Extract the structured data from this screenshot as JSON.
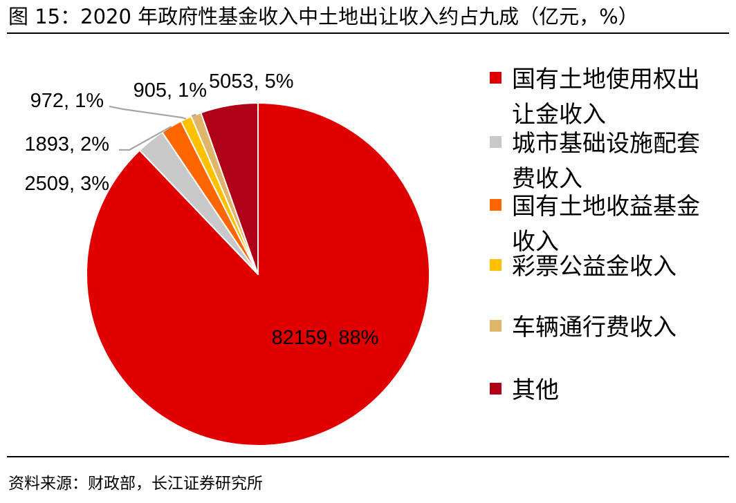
{
  "figure": {
    "title": "图 15：2020 年政府性基金收入中土地出让收入约占九成（亿元，%）",
    "source": "资料来源：财政部，长江证券研究所"
  },
  "chart_data": {
    "type": "pie",
    "labels": [
      "国有土地使用权出让金收入",
      "城市基础设施配套费收入",
      "国有土地收益基金收入",
      "彩票公益金收入",
      "车辆通行费收入",
      "其他"
    ],
    "values": [
      82159,
      2509,
      1893,
      972,
      905,
      5053
    ],
    "percents": [
      88,
      3,
      2,
      1,
      1,
      5
    ],
    "data_labels": [
      "82159, 88%",
      "2509, 3%",
      "1893, 2%",
      "972, 1%",
      "905, 1%",
      "5053, 5%"
    ],
    "colors": [
      "#E00000",
      "#C8C8C8",
      "#FF6600",
      "#FFC000",
      "#DFB56A",
      "#B00018"
    ],
    "start_angle_deg": 0,
    "direction": "clockwise",
    "legend_position": "right"
  }
}
